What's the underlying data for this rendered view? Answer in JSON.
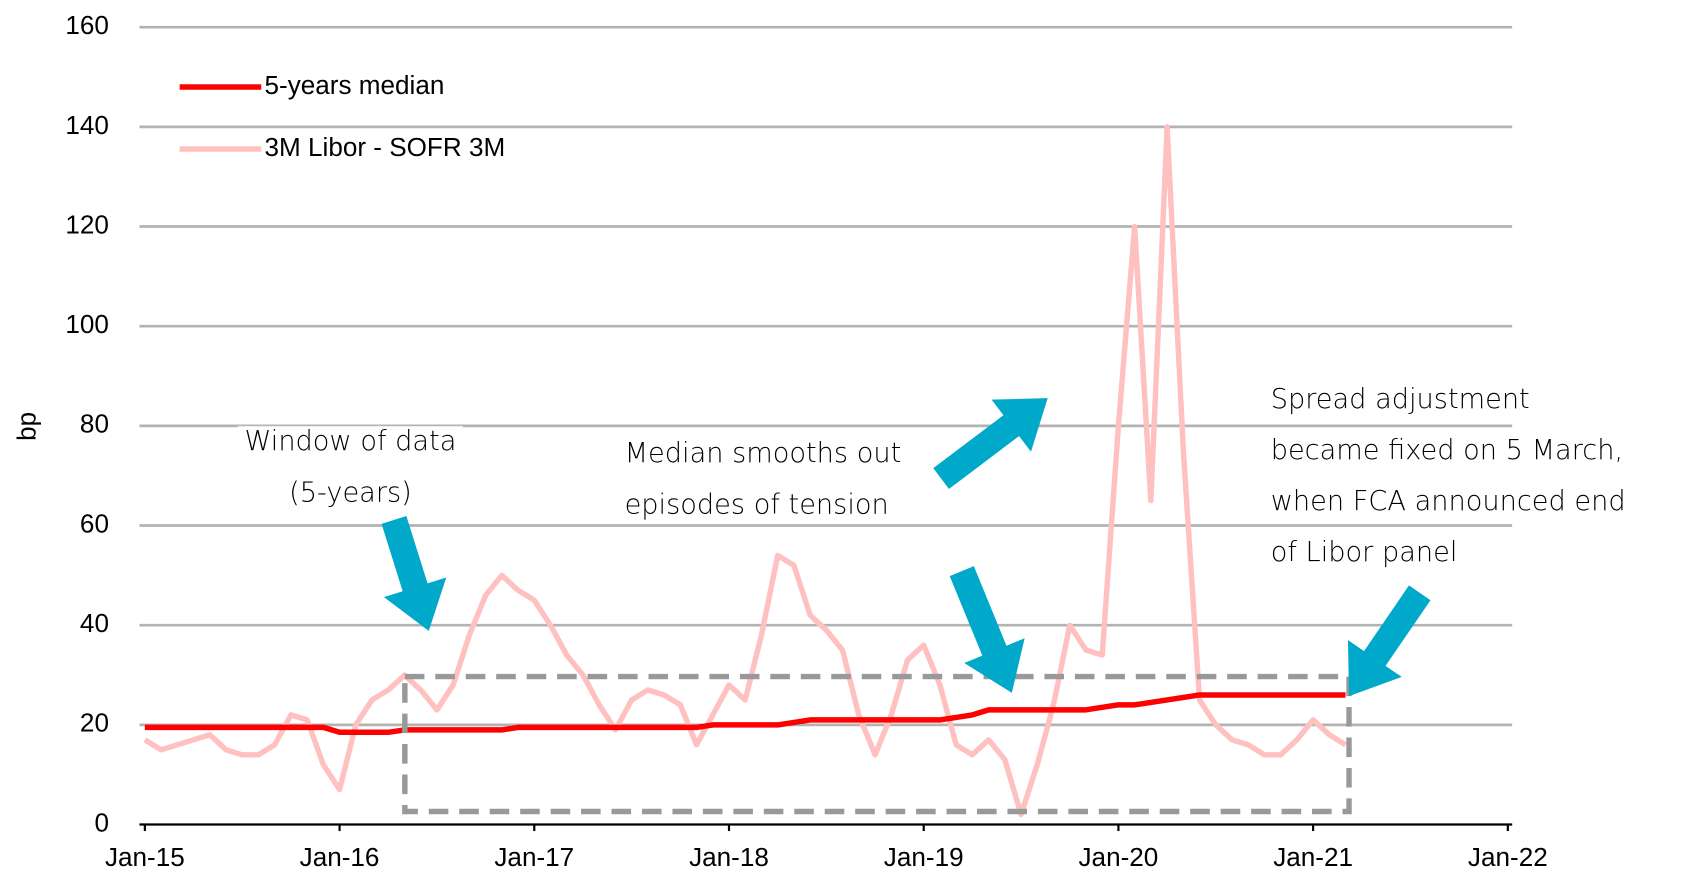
{
  "chart_data": {
    "type": "line",
    "ylabel": "bp",
    "x": [
      "2015-01",
      "2015-02",
      "2015-03",
      "2015-04",
      "2015-05",
      "2015-06",
      "2015-07",
      "2015-08",
      "2015-09",
      "2015-10",
      "2015-11",
      "2015-12",
      "2016-01",
      "2016-02",
      "2016-03",
      "2016-04",
      "2016-05",
      "2016-06",
      "2016-07",
      "2016-08",
      "2016-09",
      "2016-10",
      "2016-11",
      "2016-12",
      "2017-01",
      "2017-02",
      "2017-03",
      "2017-04",
      "2017-05",
      "2017-06",
      "2017-07",
      "2017-08",
      "2017-09",
      "2017-10",
      "2017-11",
      "2017-12",
      "2018-01",
      "2018-02",
      "2018-03",
      "2018-04",
      "2018-05",
      "2018-06",
      "2018-07",
      "2018-08",
      "2018-09",
      "2018-10",
      "2018-11",
      "2018-12",
      "2019-01",
      "2019-02",
      "2019-03",
      "2019-04",
      "2019-05",
      "2019-06",
      "2019-07",
      "2019-08",
      "2019-09",
      "2019-10",
      "2019-11",
      "2019-12",
      "2020-01",
      "2020-02",
      "2020-03",
      "2020-04",
      "2020-05",
      "2020-06",
      "2020-07",
      "2020-08",
      "2020-09",
      "2020-10",
      "2020-11",
      "2020-12",
      "2021-01",
      "2021-02",
      "2021-03"
    ],
    "series": [
      {
        "name": "5-years median",
        "color": "#ff0000",
        "values": [
          19.5,
          19.5,
          19.5,
          19.5,
          19.5,
          19.5,
          19.5,
          19.5,
          19.5,
          19.5,
          19.5,
          19.5,
          18.5,
          18.5,
          18.5,
          18.5,
          19,
          19,
          19,
          19,
          19,
          19,
          19,
          19.5,
          19.5,
          19.5,
          19.5,
          19.5,
          19.5,
          19.5,
          19.5,
          19.5,
          19.5,
          19.5,
          19.5,
          20,
          20,
          20,
          20,
          20,
          20.5,
          21,
          21,
          21,
          21,
          21,
          21,
          21,
          21,
          21,
          21.5,
          22,
          23,
          23,
          23,
          23,
          23,
          23,
          23,
          23.5,
          24,
          24,
          24.5,
          25,
          25.5,
          26,
          26,
          26,
          26,
          26,
          26,
          26,
          26,
          26,
          26
        ]
      },
      {
        "name": "3M Libor - SOFR 3M",
        "color": "#ffc0c0",
        "values": [
          17,
          15,
          16,
          17,
          18,
          15,
          14,
          14,
          16,
          22,
          21,
          12,
          7,
          20,
          25,
          27,
          30,
          27,
          23,
          28,
          38,
          46,
          50,
          47,
          45,
          40,
          34,
          30,
          24,
          19,
          25,
          27,
          26,
          24,
          16,
          22,
          28,
          25,
          38,
          54,
          52,
          42,
          39,
          35,
          22,
          14,
          22,
          33,
          36,
          28,
          16,
          14,
          17,
          13,
          2,
          12,
          24,
          40,
          35,
          34,
          80,
          120,
          65,
          140,
          75,
          25,
          20,
          17,
          16,
          14,
          14,
          17,
          21,
          18,
          16
        ]
      }
    ],
    "xlim": [
      "2015-01",
      "2022-01"
    ],
    "xticks": [
      {
        "value": "2015-01",
        "label": "Jan-15"
      },
      {
        "value": "2016-01",
        "label": "Jan-16"
      },
      {
        "value": "2017-01",
        "label": "Jan-17"
      },
      {
        "value": "2018-01",
        "label": "Jan-18"
      },
      {
        "value": "2019-01",
        "label": "Jan-19"
      },
      {
        "value": "2020-01",
        "label": "Jan-20"
      },
      {
        "value": "2021-01",
        "label": "Jan-21"
      },
      {
        "value": "2022-01",
        "label": "Jan-22"
      }
    ],
    "ylim": [
      0,
      160
    ],
    "yticks": [
      0,
      20,
      40,
      60,
      80,
      100,
      120,
      140,
      160
    ],
    "grid": true,
    "legend": "upper-left",
    "annotations": [
      {
        "lines": [
          "Window of data",
          "(5-years)"
        ]
      },
      {
        "lines": [
          "Median smooths out",
          "episodes of tension"
        ]
      },
      {
        "lines": [
          "Spread adjustment",
          "became fixed on 5 March,",
          "when FCA announced end",
          "of Libor panel"
        ]
      }
    ]
  }
}
